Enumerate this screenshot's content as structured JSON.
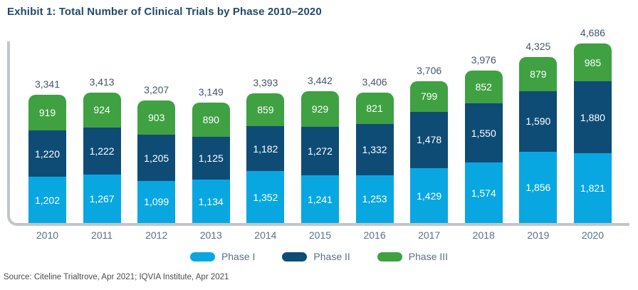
{
  "title": "Exhibit 1: Total Number of Clinical Trials by Phase 2010–2020",
  "source": "Source: Citeline Trialtrove, Apr 2021; IQVIA Institute, Apr 2021",
  "chart_data": {
    "type": "bar",
    "stacked": true,
    "title": "Exhibit 1: Total Number of Clinical Trials by Phase 2010–2020",
    "xlabel": "",
    "ylabel": "",
    "y_axis_ticks": "none (values labeled on segments)",
    "legend_position": "bottom-center",
    "categories": [
      "2010",
      "2011",
      "2012",
      "2013",
      "2014",
      "2015",
      "2016",
      "2017",
      "2018",
      "2019",
      "2020"
    ],
    "series": [
      {
        "name": "Phase I",
        "color": "#09A7E1",
        "values": [
          1202,
          1267,
          1099,
          1134,
          1352,
          1241,
          1253,
          1429,
          1574,
          1856,
          1821
        ]
      },
      {
        "name": "Phase II",
        "color": "#0E4C76",
        "values": [
          1220,
          1222,
          1205,
          1125,
          1182,
          1272,
          1332,
          1478,
          1550,
          1590,
          1880
        ]
      },
      {
        "name": "Phase III",
        "color": "#3FA142",
        "values": [
          919,
          924,
          903,
          890,
          859,
          929,
          821,
          799,
          852,
          879,
          985
        ]
      }
    ],
    "totals": [
      3341,
      3413,
      3207,
      3149,
      3393,
      3442,
      3406,
      3706,
      3976,
      4325,
      4686
    ]
  },
  "style": {
    "axis_color": "#C2C6C9",
    "title_color": "#24496B",
    "total_label_color": "#44566B",
    "tick_label_color": "#5A7184",
    "segment_label_color": "#FFFFFF"
  }
}
